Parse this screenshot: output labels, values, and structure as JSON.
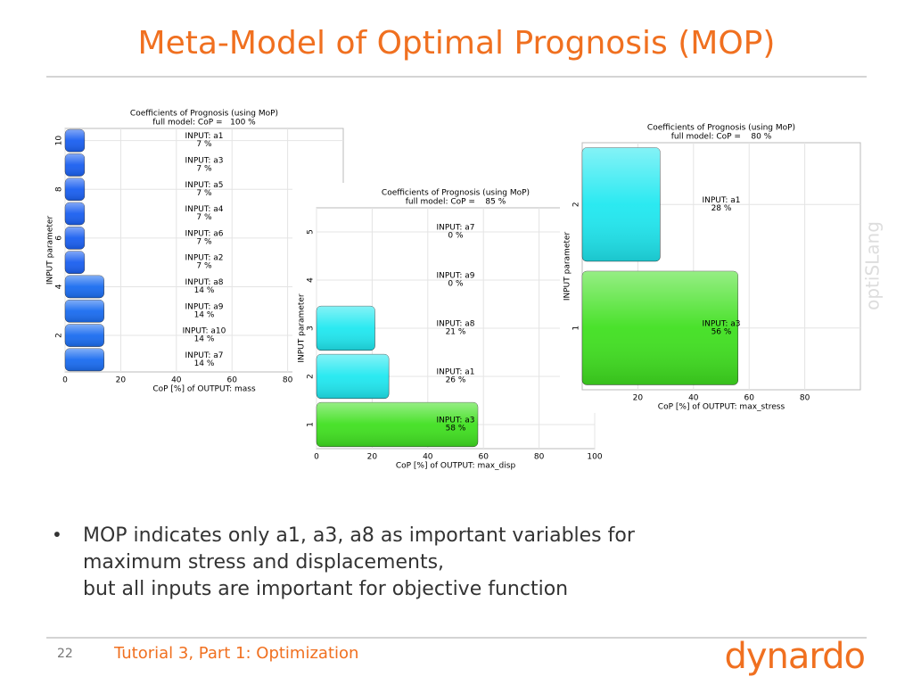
{
  "slide": {
    "title": "Meta-Model of Optimal Prognosis (MOP)",
    "bullet": [
      "MOP indicates only a1, a3, a8 as important variables for",
      "maximum stress and displacements,",
      "but all inputs are important for objective function"
    ],
    "footer": {
      "page": "22",
      "text": "Tutorial 3, Part 1: Optimization",
      "logo": "dynardo"
    }
  },
  "chart_data": [
    {
      "type": "bar",
      "orientation": "horizontal",
      "title": "Coefficients of Prognosis (using MoP)",
      "subtitle": "full model: CoP =   100 %",
      "xlabel": "CoP [%] of OUTPUT: mass",
      "ylabel": "INPUT parameter",
      "watermark": "optiSLang",
      "categories": [
        "INPUT: a1",
        "INPUT: a3",
        "INPUT: a5",
        "INPUT: a4",
        "INPUT: a6",
        "INPUT: a2",
        "INPUT: a8",
        "INPUT: a9",
        "INPUT: a10",
        "INPUT: a7"
      ],
      "values": [
        7,
        7,
        7,
        7,
        7,
        7,
        14,
        14,
        14,
        14
      ],
      "value_labels": [
        "7 %",
        "7 %",
        "7 %",
        "7 %",
        "7 %",
        "7 %",
        "14 %",
        "14 %",
        "14 %",
        "14 %"
      ],
      "colors": [
        "#1a5ff0",
        "#1a5ff0",
        "#1a5ff0",
        "#1a5ff0",
        "#1a5ff0",
        "#1a5ff0",
        "#1a6cf0",
        "#1a6cf0",
        "#1a6cf0",
        "#1a6cf0"
      ],
      "xlim": [
        0,
        100
      ],
      "xticks": [
        0,
        20,
        40,
        60,
        80
      ],
      "ylim": [
        0.5,
        10.5
      ],
      "yticks": [
        2,
        4,
        6,
        8,
        10
      ],
      "grid": true
    },
    {
      "type": "bar",
      "orientation": "horizontal",
      "title": "Coefficients of Prognosis (using MoP)",
      "subtitle": "full model: CoP =    85 %",
      "xlabel": "CoP [%] of OUTPUT: max_disp",
      "ylabel": "INPUT parameter",
      "watermark": "optiSLang",
      "categories": [
        "INPUT: a7",
        "INPUT: a9",
        "INPUT: a8",
        "INPUT: a1",
        "INPUT: a3"
      ],
      "values": [
        0,
        0,
        21,
        26,
        58
      ],
      "value_labels": [
        "0 %",
        "0 %",
        "21 %",
        "26 %",
        "58 %"
      ],
      "colors": [
        "#20e8f0",
        "#20e8f0",
        "#20e8f0",
        "#20e8f0",
        "#40e020"
      ],
      "xlim": [
        0,
        100
      ],
      "xticks": [
        0,
        20,
        40,
        60,
        80,
        100
      ],
      "ylim": [
        0.5,
        5.5
      ],
      "yticks": [
        1,
        2,
        3,
        4,
        5
      ],
      "grid": true
    },
    {
      "type": "bar",
      "orientation": "horizontal",
      "title": "Coefficients of Prognosis (using MoP)",
      "subtitle": "full model: CoP =    80 %",
      "xlabel": "CoP [%] of OUTPUT: max_stress",
      "ylabel": "INPUT parameter",
      "watermark": "optiSLang",
      "categories": [
        "INPUT: a1",
        "INPUT: a3"
      ],
      "values": [
        28,
        56
      ],
      "value_labels": [
        "28 %",
        "56 %"
      ],
      "colors": [
        "#20e8f0",
        "#40e020"
      ],
      "xlim": [
        0,
        100
      ],
      "xticks": [
        20,
        40,
        60,
        80
      ],
      "ylim": [
        0.5,
        2.5
      ],
      "yticks": [
        1,
        2
      ],
      "grid": true
    }
  ]
}
